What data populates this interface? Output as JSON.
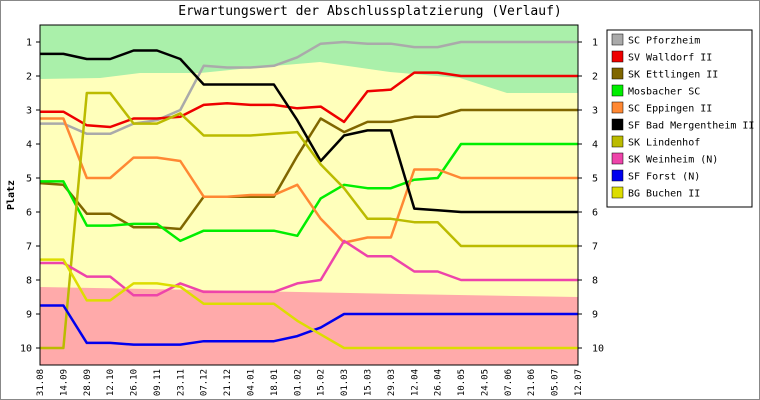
{
  "chart_data": {
    "type": "line",
    "title": "Erwartungswert der Abschlussplatzierung (Verlauf)",
    "ylabel": "Platz",
    "categories": [
      "31.08",
      "14.09",
      "28.09",
      "12.10",
      "26.10",
      "09.11",
      "23.11",
      "07.12",
      "21.12",
      "04.01",
      "18.01",
      "01.02",
      "15.02",
      "01.03",
      "15.03",
      "29.03",
      "12.04",
      "26.04",
      "10.05",
      "24.05",
      "07.06",
      "21.06",
      "05.07",
      "12.07"
    ],
    "ylim": [
      10.5,
      0.5
    ],
    "yticks": [
      1,
      2,
      3,
      4,
      5,
      6,
      7,
      8,
      9,
      10
    ],
    "series": [
      {
        "name": "SC Pforzheim",
        "color": "#aaaaaa",
        "values": [
          3.4,
          3.4,
          3.7,
          3.7,
          3.4,
          3.3,
          3.0,
          1.7,
          1.75,
          1.75,
          1.7,
          1.45,
          1.05,
          1.0,
          1.05,
          1.05,
          1.15,
          1.15,
          1.0,
          1.0,
          1.0,
          1.0,
          1.0,
          1.0
        ]
      },
      {
        "name": "SV Walldorf II",
        "color": "#ee0000",
        "values": [
          3.05,
          3.05,
          3.45,
          3.5,
          3.25,
          3.25,
          3.2,
          2.85,
          2.8,
          2.85,
          2.85,
          2.95,
          2.9,
          3.35,
          2.45,
          2.4,
          1.9,
          1.9,
          2.0,
          2.0,
          2.0,
          2.0,
          2.0,
          2.0
        ]
      },
      {
        "name": "SK Ettlingen II",
        "color": "#806600",
        "values": [
          5.15,
          5.2,
          6.05,
          6.05,
          6.45,
          6.45,
          6.5,
          5.55,
          5.55,
          5.55,
          5.55,
          4.35,
          3.25,
          3.65,
          3.35,
          3.35,
          3.2,
          3.2,
          3.0,
          3.0,
          3.0,
          3.0,
          3.0,
          3.0
        ]
      },
      {
        "name": "Mosbacher SC",
        "color": "#00ee00",
        "values": [
          5.1,
          5.1,
          6.4,
          6.4,
          6.35,
          6.35,
          6.85,
          6.55,
          6.55,
          6.55,
          6.55,
          6.7,
          5.6,
          5.2,
          5.3,
          5.3,
          5.05,
          5.0,
          4.0,
          4.0,
          4.0,
          4.0,
          4.0,
          4.0
        ]
      },
      {
        "name": "SC Eppingen II",
        "color": "#ff8833",
        "values": [
          3.25,
          3.25,
          5.0,
          5.0,
          4.4,
          4.4,
          4.5,
          5.55,
          5.55,
          5.5,
          5.5,
          5.2,
          6.2,
          6.9,
          6.75,
          6.75,
          4.75,
          4.75,
          5.0,
          5.0,
          5.0,
          5.0,
          5.0,
          5.0
        ]
      },
      {
        "name": "SF Bad Mergentheim II",
        "color": "#000000",
        "values": [
          1.35,
          1.35,
          1.5,
          1.5,
          1.25,
          1.25,
          1.5,
          2.25,
          2.25,
          2.25,
          2.25,
          3.3,
          4.5,
          3.75,
          3.6,
          3.6,
          5.9,
          5.95,
          6.0,
          6.0,
          6.0,
          6.0,
          6.0,
          6.0
        ]
      },
      {
        "name": "SK Lindenhof",
        "color": "#bbbb00",
        "values": [
          10,
          10,
          2.5,
          2.5,
          3.4,
          3.4,
          3.1,
          3.75,
          3.75,
          3.75,
          3.7,
          3.65,
          4.6,
          5.3,
          6.2,
          6.2,
          6.3,
          6.3,
          7.0,
          7.0,
          7.0,
          7.0,
          7.0,
          7.0
        ]
      },
      {
        "name": "SK Weinheim   (N)",
        "color": "#ee44aa",
        "values": [
          7.5,
          7.5,
          7.9,
          7.9,
          8.45,
          8.45,
          8.1,
          8.35,
          8.35,
          8.35,
          8.35,
          8.1,
          8.0,
          6.85,
          7.3,
          7.3,
          7.75,
          7.75,
          8.0,
          8.0,
          8.0,
          8.0,
          8.0,
          8.0
        ]
      },
      {
        "name": "SF Forst   (N)",
        "color": "#0000ee",
        "values": [
          8.75,
          8.75,
          9.85,
          9.85,
          9.9,
          9.9,
          9.9,
          9.8,
          9.8,
          9.8,
          9.8,
          9.65,
          9.4,
          9.0,
          9.0,
          9.0,
          9.0,
          9.0,
          9.0,
          9.0,
          9.0,
          9.0,
          9.0,
          9.0
        ]
      },
      {
        "name": "BG Buchen II",
        "color": "#dddd00",
        "values": [
          7.4,
          7.4,
          8.6,
          8.6,
          8.1,
          8.1,
          8.2,
          8.7,
          8.7,
          8.7,
          8.7,
          9.2,
          9.6,
          10,
          10,
          10,
          10,
          10,
          10,
          10,
          10,
          10,
          10,
          10
        ]
      }
    ]
  }
}
